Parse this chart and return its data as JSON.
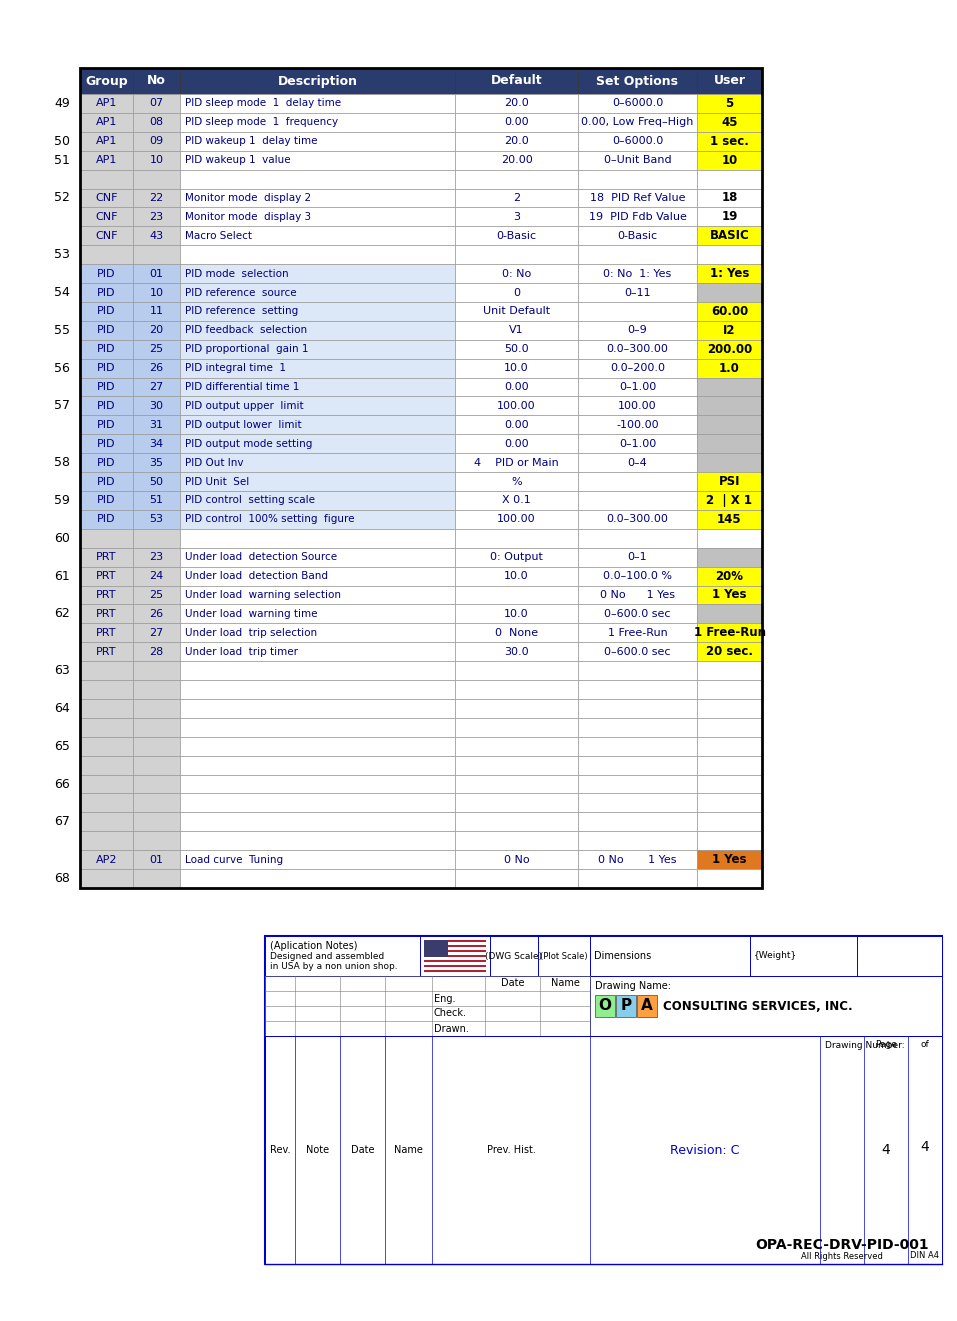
{
  "rows": [
    {
      "group": "AP1",
      "no": "07",
      "description": "PID sleep mode  1  delay time",
      "default": "20.0",
      "set_options": "0–6000.0",
      "user": "5",
      "user_bg": "#ffff00",
      "grp_pid": false
    },
    {
      "group": "AP1",
      "no": "08",
      "description": "PID sleep mode  1  frequency",
      "default": "0.00",
      "set_options": "0.00, Low Freq–High",
      "user": "45",
      "user_bg": "#ffff00",
      "grp_pid": false
    },
    {
      "group": "AP1",
      "no": "09",
      "description": "PID wakeup 1  delay time",
      "default": "20.0",
      "set_options": "0–6000.0",
      "user": "1 sec.",
      "user_bg": "#ffff00",
      "grp_pid": false
    },
    {
      "group": "AP1",
      "no": "10",
      "description": "PID wakeup 1  value",
      "default": "20.00",
      "set_options": "0–Unit Band",
      "user": "10",
      "user_bg": "#ffff00",
      "grp_pid": false
    },
    {
      "group": "",
      "no": "",
      "description": "",
      "default": "",
      "set_options": "",
      "user": "",
      "user_bg": "#ffffff",
      "grp_pid": false
    },
    {
      "group": "CNF",
      "no": "22",
      "description": "Monitor mode  display 2",
      "default": "2",
      "set_options": "18  PID Ref Value",
      "user": "18",
      "user_bg": "#ffffff",
      "grp_pid": false
    },
    {
      "group": "CNF",
      "no": "23",
      "description": "Monitor mode  display 3",
      "default": "3",
      "set_options": "19  PID Fdb Value",
      "user": "19",
      "user_bg": "#ffffff",
      "grp_pid": false
    },
    {
      "group": "CNF",
      "no": "43",
      "description": "Macro Select",
      "default": "0-Basic",
      "set_options": "0-Basic",
      "user": "BASIC",
      "user_bg": "#ffff00",
      "grp_pid": false
    },
    {
      "group": "",
      "no": "",
      "description": "",
      "default": "",
      "set_options": "",
      "user": "",
      "user_bg": "#ffffff",
      "grp_pid": false
    },
    {
      "group": "PID",
      "no": "01",
      "description": "PID mode  selection",
      "default": "0: No",
      "set_options": "0: No  1: Yes",
      "user": "1: Yes",
      "user_bg": "#ffff00",
      "grp_pid": true
    },
    {
      "group": "PID",
      "no": "10",
      "description": "PID reference  source",
      "default": "0",
      "set_options": "0–11",
      "user": "",
      "user_bg": "#c0c0c0",
      "grp_pid": true
    },
    {
      "group": "PID",
      "no": "11",
      "description": "PID reference  setting",
      "default": "Unit Default",
      "set_options": "",
      "user": "60.00",
      "user_bg": "#ffff00",
      "grp_pid": true
    },
    {
      "group": "PID",
      "no": "20",
      "description": "PID feedback  selection",
      "default": "V1",
      "set_options": "0–9",
      "user": "I2",
      "user_bg": "#ffff00",
      "grp_pid": true
    },
    {
      "group": "PID",
      "no": "25",
      "description": "PID proportional  gain 1",
      "default": "50.0",
      "set_options": "0.0–300.00",
      "user": "200.00",
      "user_bg": "#ffff00",
      "grp_pid": true
    },
    {
      "group": "PID",
      "no": "26",
      "description": "PID integral time  1",
      "default": "10.0",
      "set_options": "0.0–200.0",
      "user": "1.0",
      "user_bg": "#ffff00",
      "grp_pid": true
    },
    {
      "group": "PID",
      "no": "27",
      "description": "PID differential time 1",
      "default": "0.00",
      "set_options": "0–1.00",
      "user": "",
      "user_bg": "#c0c0c0",
      "grp_pid": true
    },
    {
      "group": "PID",
      "no": "30",
      "description": "PID output upper  limit",
      "default": "100.00",
      "set_options": "100.00",
      "user": "",
      "user_bg": "#c0c0c0",
      "grp_pid": true
    },
    {
      "group": "PID",
      "no": "31",
      "description": "PID output lower  limit",
      "default": "0.00",
      "set_options": "-100.00",
      "user": "",
      "user_bg": "#c0c0c0",
      "grp_pid": true
    },
    {
      "group": "PID",
      "no": "34",
      "description": "PID output mode setting",
      "default": "0.00",
      "set_options": "0–1.00",
      "user": "",
      "user_bg": "#c0c0c0",
      "grp_pid": true
    },
    {
      "group": "PID",
      "no": "35",
      "description": "PID Out Inv",
      "default": "4    PID or Main",
      "set_options": "0–4",
      "user": "",
      "user_bg": "#c0c0c0",
      "grp_pid": true
    },
    {
      "group": "PID",
      "no": "50",
      "description": "PID Unit  Sel",
      "default": "%",
      "set_options": "",
      "user": "PSI",
      "user_bg": "#ffff00",
      "grp_pid": true
    },
    {
      "group": "PID",
      "no": "51",
      "description": "PID control  setting scale",
      "default": "X 0.1",
      "set_options": "",
      "user": "2  | X 1",
      "user_bg": "#ffff00",
      "grp_pid": true
    },
    {
      "group": "PID",
      "no": "53",
      "description": "PID control  100% setting  figure",
      "default": "100.00",
      "set_options": "0.0–300.00",
      "user": "145",
      "user_bg": "#ffff00",
      "grp_pid": true
    },
    {
      "group": "",
      "no": "",
      "description": "",
      "default": "",
      "set_options": "",
      "user": "",
      "user_bg": "#ffffff",
      "grp_pid": false
    },
    {
      "group": "PRT",
      "no": "23",
      "description": "Under load  detection Source",
      "default": "0: Output",
      "set_options": "0–1",
      "user": "",
      "user_bg": "#c0c0c0",
      "grp_pid": false
    },
    {
      "group": "PRT",
      "no": "24",
      "description": "Under load  detection Band",
      "default": "10.0",
      "set_options": "0.0–100.0 %",
      "user": "20%",
      "user_bg": "#ffff00",
      "grp_pid": false
    },
    {
      "group": "PRT",
      "no": "25",
      "description": "Under load  warning selection",
      "default": "",
      "set_options": "0 No      1 Yes",
      "user": "1 Yes",
      "user_bg": "#ffff00",
      "grp_pid": false
    },
    {
      "group": "PRT",
      "no": "26",
      "description": "Under load  warning time",
      "default": "10.0",
      "set_options": "0–600.0 sec",
      "user": "",
      "user_bg": "#c0c0c0",
      "grp_pid": false
    },
    {
      "group": "PRT",
      "no": "27",
      "description": "Under load  trip selection",
      "default": "0  None",
      "set_options": "1 Free-Run",
      "user": "1 Free-Run",
      "user_bg": "#ffff00",
      "grp_pid": false
    },
    {
      "group": "PRT",
      "no": "28",
      "description": "Under load  trip timer",
      "default": "30.0",
      "set_options": "0–600.0 sec",
      "user": "20 sec.",
      "user_bg": "#ffff00",
      "grp_pid": false
    },
    {
      "group": "",
      "no": "",
      "description": "",
      "default": "",
      "set_options": "",
      "user": "",
      "user_bg": "#ffffff",
      "grp_pid": false
    },
    {
      "group": "",
      "no": "",
      "description": "",
      "default": "",
      "set_options": "",
      "user": "",
      "user_bg": "#ffffff",
      "grp_pid": false
    },
    {
      "group": "",
      "no": "",
      "description": "",
      "default": "",
      "set_options": "",
      "user": "",
      "user_bg": "#ffffff",
      "grp_pid": false
    },
    {
      "group": "",
      "no": "",
      "description": "",
      "default": "",
      "set_options": "",
      "user": "",
      "user_bg": "#ffffff",
      "grp_pid": false
    },
    {
      "group": "",
      "no": "",
      "description": "",
      "default": "",
      "set_options": "",
      "user": "",
      "user_bg": "#ffffff",
      "grp_pid": false
    },
    {
      "group": "",
      "no": "",
      "description": "",
      "default": "",
      "set_options": "",
      "user": "",
      "user_bg": "#ffffff",
      "grp_pid": false
    },
    {
      "group": "",
      "no": "",
      "description": "",
      "default": "",
      "set_options": "",
      "user": "",
      "user_bg": "#ffffff",
      "grp_pid": false
    },
    {
      "group": "",
      "no": "",
      "description": "",
      "default": "",
      "set_options": "",
      "user": "",
      "user_bg": "#ffffff",
      "grp_pid": false
    },
    {
      "group": "",
      "no": "",
      "description": "",
      "default": "",
      "set_options": "",
      "user": "",
      "user_bg": "#ffffff",
      "grp_pid": false
    },
    {
      "group": "",
      "no": "",
      "description": "",
      "default": "",
      "set_options": "",
      "user": "",
      "user_bg": "#ffffff",
      "grp_pid": false
    },
    {
      "group": "AP2",
      "no": "01",
      "description": "Load curve  Tuning",
      "default": "0 No",
      "set_options": "0 No       1 Yes",
      "user": "1 Yes",
      "user_bg": "#e07820",
      "grp_pid": false
    },
    {
      "group": "",
      "no": "",
      "description": "",
      "default": "",
      "set_options": "",
      "user": "",
      "user_bg": "#ffffff",
      "grp_pid": false
    }
  ],
  "line_labels": [
    {
      "label": "49",
      "row_idx": 0
    },
    {
      "label": "50",
      "row_idx": 2
    },
    {
      "label": "51",
      "row_idx": 3
    },
    {
      "label": "52",
      "row_idx": 5
    },
    {
      "label": "53",
      "row_idx": 8
    },
    {
      "label": "54",
      "row_idx": 10
    },
    {
      "label": "55",
      "row_idx": 12
    },
    {
      "label": "56",
      "row_idx": 14
    },
    {
      "label": "57",
      "row_idx": 16
    },
    {
      "label": "58",
      "row_idx": 19
    },
    {
      "label": "59",
      "row_idx": 21
    },
    {
      "label": "60",
      "row_idx": 23
    },
    {
      "label": "61",
      "row_idx": 25
    },
    {
      "label": "62",
      "row_idx": 27
    },
    {
      "label": "63",
      "row_idx": 30
    },
    {
      "label": "64",
      "row_idx": 32
    },
    {
      "label": "65",
      "row_idx": 34
    },
    {
      "label": "66",
      "row_idx": 36
    },
    {
      "label": "67",
      "row_idx": 38
    },
    {
      "label": "68",
      "row_idx": 41
    }
  ],
  "col_headers": [
    "Group",
    "No",
    "Description",
    "Default",
    "Set Options",
    "User"
  ],
  "header_bg": "#2a3b6e",
  "grp_color_normal": "#d2d2d2",
  "grp_color_pid": "#b8ccee",
  "desc_color_pid": "#dce8f8",
  "desc_color_normal": "#ffffff",
  "set_opt_color": "#ffffff",
  "default_color": "#ffffff",
  "border_outer": "#000000",
  "border_inner": "#999999",
  "text_grp": "#000080",
  "text_desc": "#000080",
  "text_center": "#000080",
  "text_user_normal": "#000000",
  "page_bg": "#ffffff",
  "margin_bg": "#f0f0f0",
  "tb_border": "#0000cc",
  "opa_O": "#90ee90",
  "opa_P": "#87ceeb",
  "opa_A": "#ffa040"
}
